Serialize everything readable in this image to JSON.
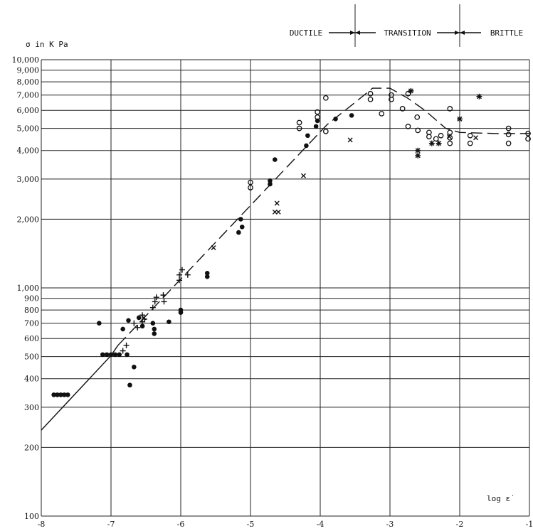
{
  "chart_data": {
    "type": "scatter",
    "title": "",
    "xlabel": "log ε̇",
    "ylabel": "σ  in K Pa",
    "x_range": [
      -8,
      -1
    ],
    "y_range": [
      100,
      10000
    ],
    "y_scale": "log",
    "grid": true,
    "x_ticks": [
      -8,
      -7,
      -6,
      -5,
      -4,
      -3,
      -2,
      -1
    ],
    "x_tick_labels": [
      "-8",
      "-7",
      "-6",
      "-5",
      "-4",
      "-3",
      "-2",
      "-1"
    ],
    "y_ticks": [
      100,
      200,
      300,
      400,
      500,
      600,
      700,
      800,
      900,
      1000,
      2000,
      3000,
      4000,
      5000,
      6000,
      7000,
      8000,
      9000,
      10000
    ],
    "y_tick_labels": [
      "100",
      "200",
      "300",
      "400",
      "500",
      "600",
      "700",
      "800",
      "900",
      "1,000",
      "2,000",
      "3,000",
      "4,000",
      "5,000",
      "6,000",
      "7,000",
      "8,000",
      "9,000",
      "10,000"
    ],
    "regions": [
      {
        "label": "DUCTILE",
        "x_end": -3.5
      },
      {
        "label": "TRANSITION",
        "x_start": -3.5,
        "x_end": -2.0
      },
      {
        "label": "BRITTLE",
        "x_start": -2.0
      }
    ],
    "series": [
      {
        "marker": "dot",
        "points": [
          [
            -7.82,
            340
          ],
          [
            -7.77,
            340
          ],
          [
            -7.72,
            340
          ],
          [
            -7.67,
            340
          ],
          [
            -7.62,
            340
          ],
          [
            -7.17,
            700
          ],
          [
            -7.12,
            510
          ],
          [
            -7.06,
            510
          ],
          [
            -7.0,
            510
          ],
          [
            -6.94,
            510
          ],
          [
            -6.88,
            510
          ],
          [
            -6.83,
            660
          ],
          [
            -6.77,
            510
          ],
          [
            -6.73,
            375
          ],
          [
            -6.67,
            450
          ],
          [
            -6.75,
            720
          ],
          [
            -6.6,
            740
          ],
          [
            -6.55,
            680
          ],
          [
            -6.4,
            700
          ],
          [
            -6.38,
            630
          ],
          [
            -6.38,
            660
          ],
          [
            -6.17,
            710
          ],
          [
            -6.0,
            780
          ],
          [
            -6.0,
            800
          ],
          [
            -5.62,
            1120
          ],
          [
            -5.62,
            1160
          ],
          [
            -5.17,
            1750
          ],
          [
            -5.14,
            2000
          ],
          [
            -5.12,
            1850
          ],
          [
            -4.72,
            2850
          ],
          [
            -4.72,
            2950
          ],
          [
            -4.65,
            3650
          ],
          [
            -4.2,
            4200
          ],
          [
            -4.18,
            4650
          ],
          [
            -4.06,
            5100
          ],
          [
            -4.04,
            5400
          ],
          [
            -3.78,
            5500
          ],
          [
            -3.55,
            5700
          ]
        ]
      },
      {
        "marker": "plus",
        "points": [
          [
            -6.83,
            530
          ],
          [
            -6.78,
            560
          ],
          [
            -6.67,
            700
          ],
          [
            -6.62,
            670
          ],
          [
            -6.55,
            710
          ],
          [
            -6.55,
            760
          ],
          [
            -6.52,
            730
          ],
          [
            -6.4,
            820
          ],
          [
            -6.37,
            870
          ],
          [
            -6.35,
            910
          ],
          [
            -6.25,
            930
          ],
          [
            -6.24,
            870
          ],
          [
            -6.02,
            1080
          ],
          [
            -6.02,
            1140
          ],
          [
            -5.98,
            1200
          ],
          [
            -5.9,
            1140
          ]
        ]
      },
      {
        "marker": "x",
        "points": [
          [
            -6.53,
            740
          ],
          [
            -5.53,
            1500
          ],
          [
            -4.62,
            2350
          ],
          [
            -4.65,
            2150
          ],
          [
            -4.6,
            2150
          ],
          [
            -4.24,
            3100
          ],
          [
            -3.57,
            4450
          ],
          [
            -2.15,
            4600
          ],
          [
            -1.77,
            4550
          ]
        ]
      },
      {
        "marker": "circle",
        "points": [
          [
            -5.0,
            2750
          ],
          [
            -5.0,
            2900
          ],
          [
            -4.3,
            5000
          ],
          [
            -4.3,
            5300
          ],
          [
            -4.04,
            5600
          ],
          [
            -4.04,
            5900
          ],
          [
            -3.92,
            4850
          ],
          [
            -3.92,
            6800
          ],
          [
            -3.28,
            7100
          ],
          [
            -3.28,
            6700
          ],
          [
            -3.12,
            5800
          ],
          [
            -2.98,
            6700
          ],
          [
            -2.98,
            7000
          ],
          [
            -2.82,
            6100
          ],
          [
            -2.74,
            7100
          ],
          [
            -2.74,
            5100
          ],
          [
            -2.61,
            5600
          ],
          [
            -2.6,
            4900
          ],
          [
            -2.44,
            4800
          ],
          [
            -2.44,
            4600
          ],
          [
            -2.34,
            4500
          ],
          [
            -2.27,
            4650
          ],
          [
            -2.14,
            6100
          ],
          [
            -2.14,
            4800
          ],
          [
            -2.14,
            4300
          ],
          [
            -2.14,
            4550
          ],
          [
            -1.85,
            4300
          ],
          [
            -1.85,
            4650
          ],
          [
            -1.3,
            5000
          ],
          [
            -1.3,
            4700
          ],
          [
            -1.3,
            4300
          ],
          [
            -1.02,
            4750
          ],
          [
            -1.02,
            4500
          ]
        ]
      },
      {
        "marker": "star",
        "points": [
          [
            -2.7,
            7300
          ],
          [
            -2.6,
            4000
          ],
          [
            -2.6,
            3800
          ],
          [
            -2.4,
            4300
          ],
          [
            -2.3,
            4300
          ],
          [
            -2.0,
            5500
          ],
          [
            -1.72,
            6900
          ]
        ]
      }
    ],
    "fit_line": {
      "solid": [
        [
          -8.0,
          238
        ],
        [
          -7.0,
          505
        ],
        [
          -6.9,
          560
        ]
      ],
      "dashed": [
        [
          -6.9,
          560
        ],
        [
          -3.9,
          5200
        ],
        [
          -3.5,
          6500
        ],
        [
          -3.25,
          7500
        ],
        [
          -3.0,
          7500
        ],
        [
          -2.75,
          6800
        ],
        [
          -2.5,
          6000
        ],
        [
          -2.2,
          5000
        ],
        [
          -2.0,
          4800
        ],
        [
          -1.5,
          4750
        ],
        [
          -1.0,
          4750
        ]
      ]
    }
  }
}
